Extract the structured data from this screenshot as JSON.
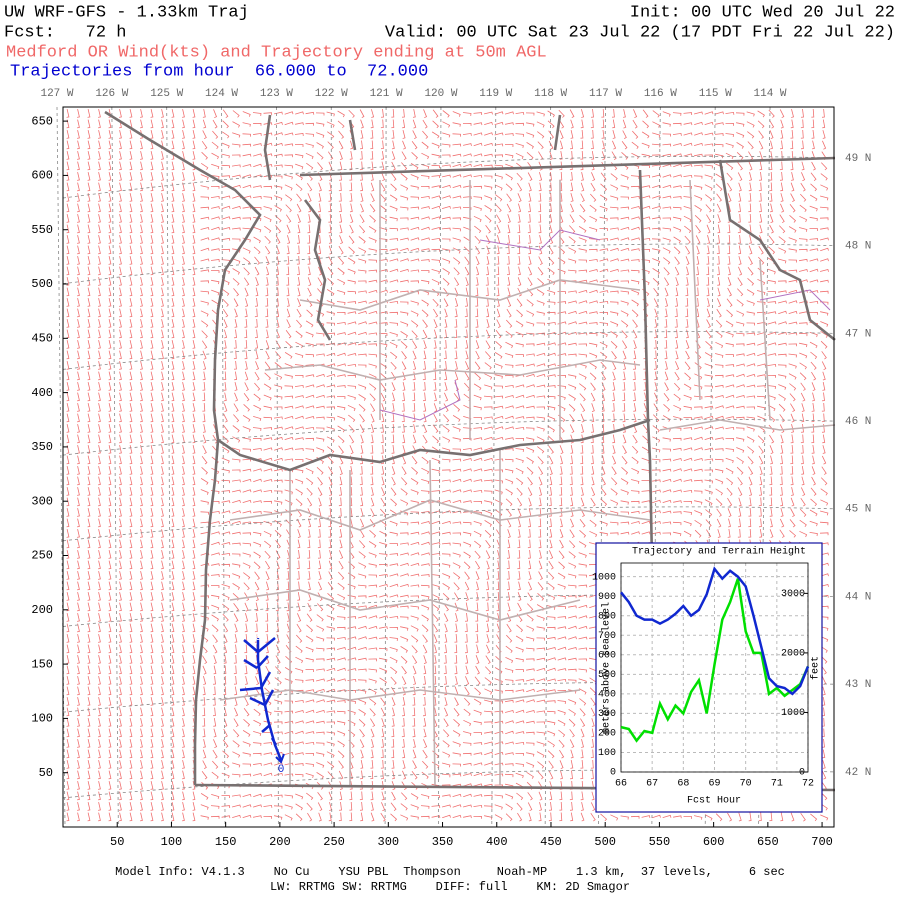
{
  "header": {
    "title": "UW WRF-GFS - 1.33km Traj",
    "init": "Init: 00 UTC Wed 20 Jul 22",
    "fcst": "Fcst:   72 h",
    "valid": "Valid: 00 UTC Sat 23 Jul 22 (17 PDT Fri 22 Jul 22)",
    "subtitle": "Medford OR Wind(kts) and Trajectory ending at 50m AGL",
    "trajectories": "Trajectories from hour  66.000 to  72.000"
  },
  "map": {
    "xlim": [
      0,
      711
    ],
    "xticks": [
      50,
      100,
      150,
      200,
      250,
      300,
      350,
      400,
      450,
      500,
      550,
      600,
      650,
      700
    ],
    "ylim": [
      0,
      663
    ],
    "yticks": [
      50,
      100,
      150,
      200,
      250,
      300,
      350,
      400,
      450,
      500,
      550,
      600,
      650
    ],
    "lon_labels": [
      "127 W",
      "126 W",
      "125 W",
      "124 W",
      "123 W",
      "122 W",
      "121 W",
      "120 W",
      "119 W",
      "118 W",
      "117 W",
      "116 W",
      "115 W",
      "114 W"
    ],
    "lat_labels": [
      "49 N",
      "48 N",
      "47 N",
      "46 N",
      "45 N",
      "44 N",
      "43 N",
      "42 N"
    ],
    "trajectory_labels": [
      "6",
      "0"
    ]
  },
  "chart_data": {
    "type": "line",
    "title": "Trajectory and Terrain Height",
    "xlabel": "Fcst Hour",
    "ylabel": "meters above sea level",
    "y2label": "feet",
    "x": [
      66,
      66.25,
      66.5,
      66.75,
      67,
      67.25,
      67.5,
      67.75,
      68,
      68.25,
      68.5,
      68.75,
      69,
      69.25,
      69.5,
      69.75,
      70,
      70.25,
      70.5,
      70.75,
      71,
      71.25,
      71.5,
      71.75,
      72
    ],
    "xlim": [
      66,
      72
    ],
    "xticks": [
      66,
      67,
      68,
      69,
      70,
      71,
      72
    ],
    "ylim": [
      0,
      1070
    ],
    "yticks": [
      0,
      100,
      200,
      300,
      400,
      500,
      600,
      700,
      800,
      900,
      1000
    ],
    "y2lim": [
      0,
      3510
    ],
    "y2ticks": [
      0,
      1000,
      2000,
      3000
    ],
    "grid": true,
    "series": [
      {
        "color": "#00e000",
        "values": [
          230,
          220,
          160,
          210,
          200,
          350,
          270,
          340,
          300,
          410,
          470,
          300,
          550,
          780,
          870,
          990,
          720,
          610,
          610,
          400,
          430,
          390,
          420,
          450,
          540
        ]
      },
      {
        "color": "#1028d0",
        "values": [
          920,
          870,
          800,
          780,
          780,
          760,
          780,
          810,
          850,
          800,
          830,
          910,
          1040,
          990,
          1030,
          1000,
          950,
          800,
          640,
          480,
          440,
          430,
          400,
          440,
          540
        ]
      }
    ]
  },
  "footer": {
    "line1": "Model Info: V4.1.3    No Cu    YSU PBL  Thompson     Noah-MP    1.3 km,  37 levels,     6 sec",
    "line2": "LW: RRTMG SW: RRTMG    DIFF: full    KM: 2D Smagor"
  }
}
